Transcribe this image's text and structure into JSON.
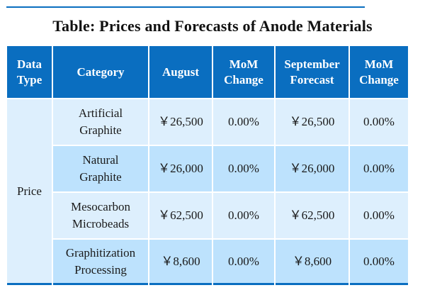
{
  "title": "Table: Prices and Forecasts of Anode Materials",
  "colors": {
    "header_bg": "#0a6ec0",
    "row_light": "#ddeffd",
    "row_dark": "#bde2fd",
    "rule": "#0a6ec0"
  },
  "table": {
    "headers": [
      {
        "line1": "Data",
        "line2": "Type"
      },
      {
        "line1": "Category",
        "line2": ""
      },
      {
        "line1": "August",
        "line2": ""
      },
      {
        "line1": "MoM",
        "line2": "Change"
      },
      {
        "line1": "September",
        "line2": "Forecast"
      },
      {
        "line1": "MoM",
        "line2": "Change"
      }
    ],
    "data_type": "Price",
    "rows": [
      {
        "category_line1": "Artificial",
        "category_line2": "Graphite",
        "august": "￥26,500",
        "mom_aug": "0.00%",
        "september_forecast": "￥26,500",
        "mom_sep": "0.00%"
      },
      {
        "category_line1": "Natural",
        "category_line2": "Graphite",
        "august": "￥26,000",
        "mom_aug": "0.00%",
        "september_forecast": "￥26,000",
        "mom_sep": "0.00%"
      },
      {
        "category_line1": "Mesocarbon",
        "category_line2": "Microbeads",
        "august": "￥62,500",
        "mom_aug": "0.00%",
        "september_forecast": "￥62,500",
        "mom_sep": "0.00%"
      },
      {
        "category_line1": "Graphitization",
        "category_line2": "Processing",
        "august": "￥8,600",
        "mom_aug": "0.00%",
        "september_forecast": "￥8,600",
        "mom_sep": "0.00%"
      }
    ]
  }
}
